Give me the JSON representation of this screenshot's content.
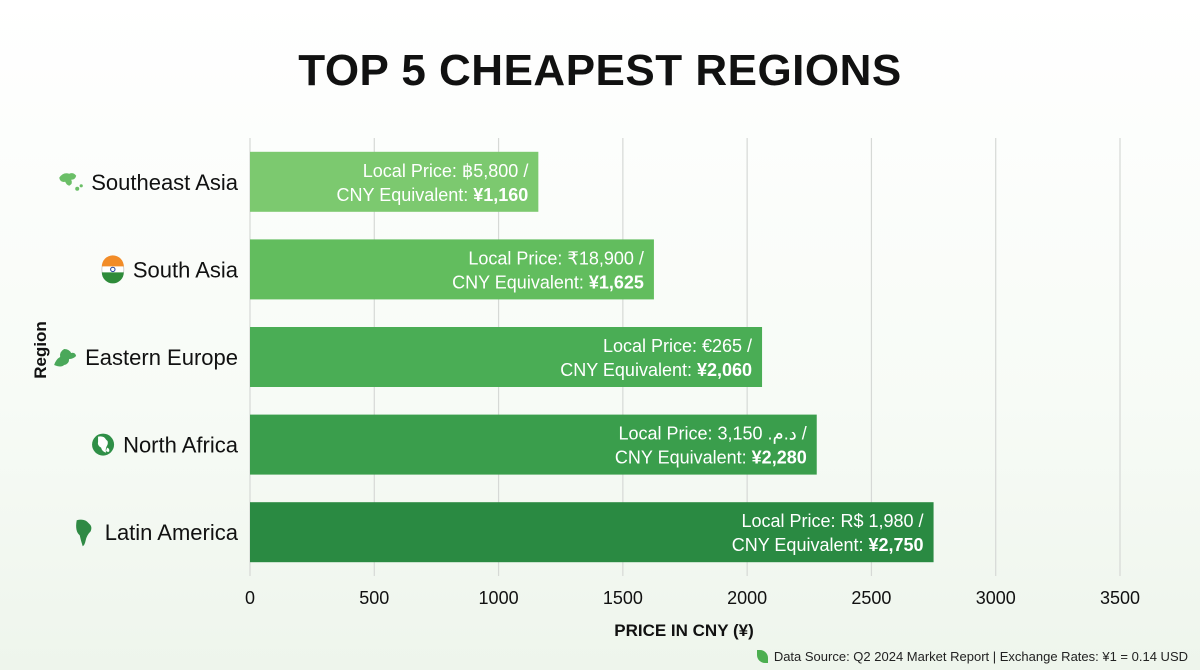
{
  "chart_data": {
    "type": "bar",
    "orientation": "horizontal",
    "title": "TOP 5 CHEAPEST REGIONS",
    "xlabel": "PRICE IN CNY (¥)",
    "ylabel": "Region",
    "xlim": [
      0,
      3500
    ],
    "xticks": [
      0,
      500,
      1000,
      1500,
      2000,
      2500,
      3000,
      3500
    ],
    "grid": "vertical",
    "categories": [
      "Southeast Asia",
      "South Asia",
      "Eastern Europe",
      "North Africa",
      "Latin America"
    ],
    "values": [
      1160,
      1625,
      2060,
      2280,
      2750
    ],
    "local_price_labels": [
      "Local Price: ฿5,800 /",
      "Local Price: ₹18,900 /",
      "Local Price: €265 /",
      "Local Price: د.م. 3,150 /",
      "Local Price: R$ 1,980 /"
    ],
    "cny_prefix": "CNY Equivalent: ",
    "cny_values": [
      "¥1,160",
      "¥1,625",
      "¥2,060",
      "¥2,280",
      "¥2,750"
    ],
    "icons": [
      "asia-map-icon",
      "india-flag-icon",
      "europe-map-icon",
      "globe-africa-icon",
      "south-america-map-icon"
    ],
    "bar_colors": [
      "#7cc96f",
      "#62bd5e",
      "#4aad55",
      "#3a9e4c",
      "#2a8a42"
    ]
  },
  "footer": {
    "source": "Data Source: Q2 2024 Market Report | Exchange Rates: ¥1 = 0.14 USD"
  }
}
